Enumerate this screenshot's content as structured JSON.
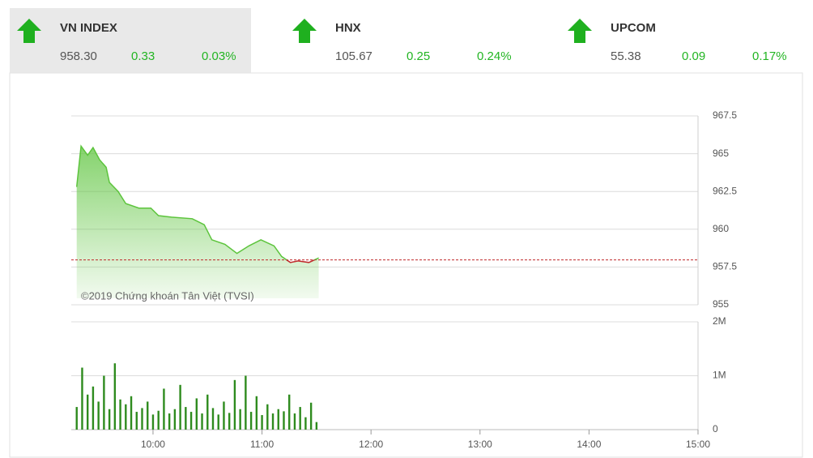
{
  "indices": [
    {
      "name": "VN INDEX",
      "value": "958.30",
      "change": "0.33",
      "percent": "0.03%"
    },
    {
      "name": "HNX",
      "value": "105.67",
      "change": "0.25",
      "percent": "0.24%"
    },
    {
      "name": "UPCOM",
      "value": "55.38",
      "change": "0.09",
      "percent": "0.17%"
    }
  ],
  "chart_data": [
    {
      "type": "area",
      "annotation": "©2019 Chứng khoán Tân Việt (TVSI)",
      "x": [
        9.3,
        9.34,
        9.4,
        9.45,
        9.51,
        9.57,
        9.6,
        9.68,
        9.75,
        9.87,
        9.98,
        10.05,
        10.17,
        10.36,
        10.47,
        10.54,
        10.66,
        10.77,
        10.88,
        10.99,
        11.11,
        11.18,
        11.26,
        11.33,
        11.43,
        11.52
      ],
      "values": [
        962.8,
        965.5,
        964.9,
        965.4,
        964.6,
        964.1,
        963.1,
        962.5,
        961.7,
        961.4,
        961.4,
        960.9,
        960.8,
        960.7,
        960.3,
        959.3,
        959.0,
        958.4,
        958.9,
        959.3,
        958.9,
        958.2,
        957.8,
        957.9,
        957.8,
        958.1
      ],
      "reference": 957.97,
      "color": "#5cc43c",
      "down_color": "#c0282a",
      "xlim": [
        9.25,
        15
      ],
      "ylim": [
        955,
        967.5
      ],
      "yticks": [
        955,
        957.5,
        960,
        962.5,
        965,
        967.5
      ],
      "grid": true
    },
    {
      "type": "bar",
      "color": "#2e8b1e",
      "x": [
        9.3,
        9.35,
        9.4,
        9.45,
        9.5,
        9.55,
        9.6,
        9.65,
        9.7,
        9.75,
        9.8,
        9.85,
        9.9,
        9.95,
        10.0,
        10.05,
        10.1,
        10.15,
        10.2,
        10.25,
        10.3,
        10.35,
        10.4,
        10.45,
        10.5,
        10.55,
        10.6,
        10.65,
        10.7,
        10.75,
        10.8,
        10.85,
        10.9,
        10.95,
        11.0,
        11.05,
        11.1,
        11.15,
        11.2,
        11.25,
        11.3,
        11.35,
        11.4,
        11.45,
        11.5
      ],
      "values": [
        420000,
        1150000,
        650000,
        800000,
        520000,
        1000000,
        380000,
        1230000,
        560000,
        470000,
        620000,
        330000,
        400000,
        520000,
        280000,
        350000,
        760000,
        300000,
        380000,
        830000,
        420000,
        330000,
        580000,
        300000,
        650000,
        400000,
        280000,
        520000,
        310000,
        920000,
        380000,
        1000000,
        330000,
        620000,
        270000,
        470000,
        300000,
        380000,
        340000,
        650000,
        300000,
        420000,
        230000,
        500000,
        140000
      ],
      "xlim": [
        9.25,
        15
      ],
      "xticks": [
        {
          "value": 10,
          "label": "10:00"
        },
        {
          "value": 11,
          "label": "11:00"
        },
        {
          "value": 12,
          "label": "12:00"
        },
        {
          "value": 13,
          "label": "13:00"
        },
        {
          "value": 14,
          "label": "14:00"
        },
        {
          "value": 15,
          "label": "15:00"
        }
      ],
      "ylim": [
        0,
        2000000
      ],
      "yticks": [
        0,
        {
          "value": 1000000,
          "label": "1M"
        },
        {
          "value": 2000000,
          "label": "2M"
        }
      ],
      "grid": true
    }
  ]
}
